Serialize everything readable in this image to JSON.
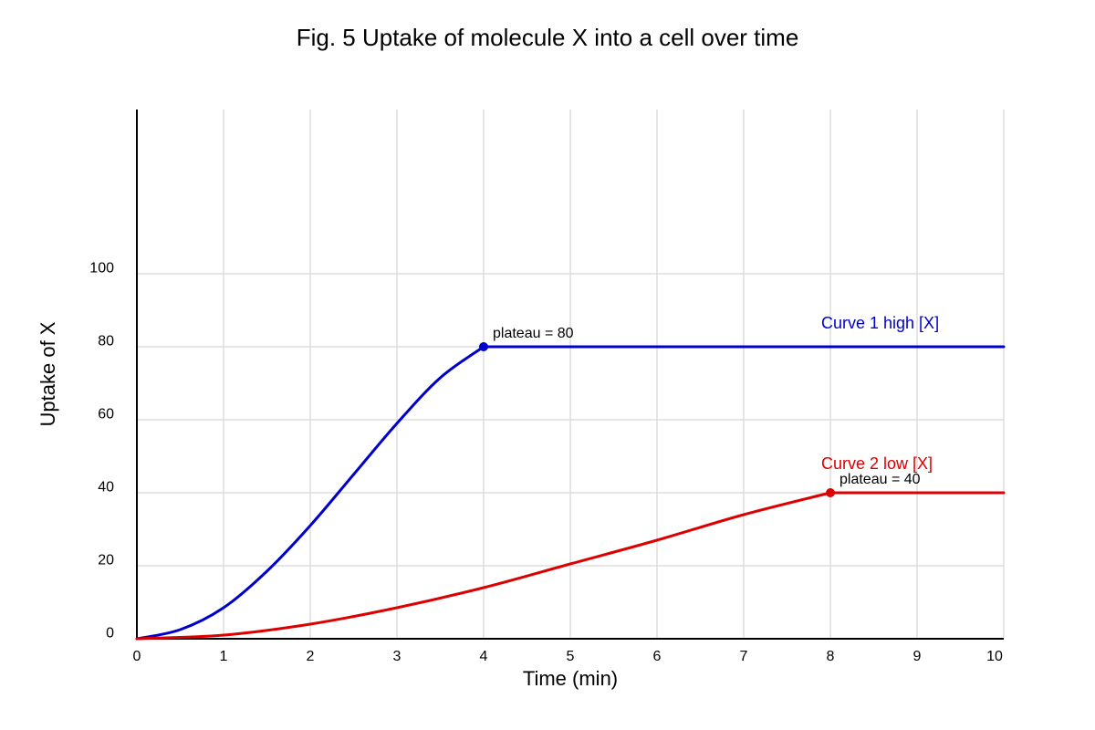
{
  "chart_data": {
    "type": "line",
    "title": "Fig. 5 Uptake of molecule X into a cell over time",
    "xlabel": "Time (min)",
    "ylabel": "Uptake of X",
    "xlim": [
      0,
      10
    ],
    "ylim": [
      0,
      100
    ],
    "x_ticks": [
      0,
      1,
      2,
      3,
      4,
      5,
      6,
      7,
      8,
      9,
      10
    ],
    "y_ticks": [
      0,
      20,
      40,
      60,
      80,
      100
    ],
    "grid": true,
    "series": [
      {
        "name": "Curve 1 high [X]",
        "color": "#0000cc",
        "x": [
          0,
          0.5,
          1,
          1.5,
          2,
          2.5,
          3,
          3.5,
          4,
          5,
          6,
          7,
          8,
          9,
          10
        ],
        "y": [
          0,
          2.5,
          8.5,
          18.5,
          31,
          45,
          59,
          71.5,
          80,
          80,
          80,
          80,
          80,
          80,
          80
        ],
        "marker": {
          "x": 4,
          "y": 80
        },
        "annotation": "plateau = 80"
      },
      {
        "name": "Curve 2 low [X]",
        "color": "#dd0000",
        "x": [
          0,
          1,
          2,
          3,
          4,
          5,
          6,
          7,
          8,
          9,
          10
        ],
        "y": [
          0,
          1,
          4,
          8.5,
          14,
          20.5,
          27,
          34,
          40,
          40,
          40
        ],
        "marker": {
          "x": 8,
          "y": 40
        },
        "annotation": "plateau = 40"
      }
    ]
  }
}
